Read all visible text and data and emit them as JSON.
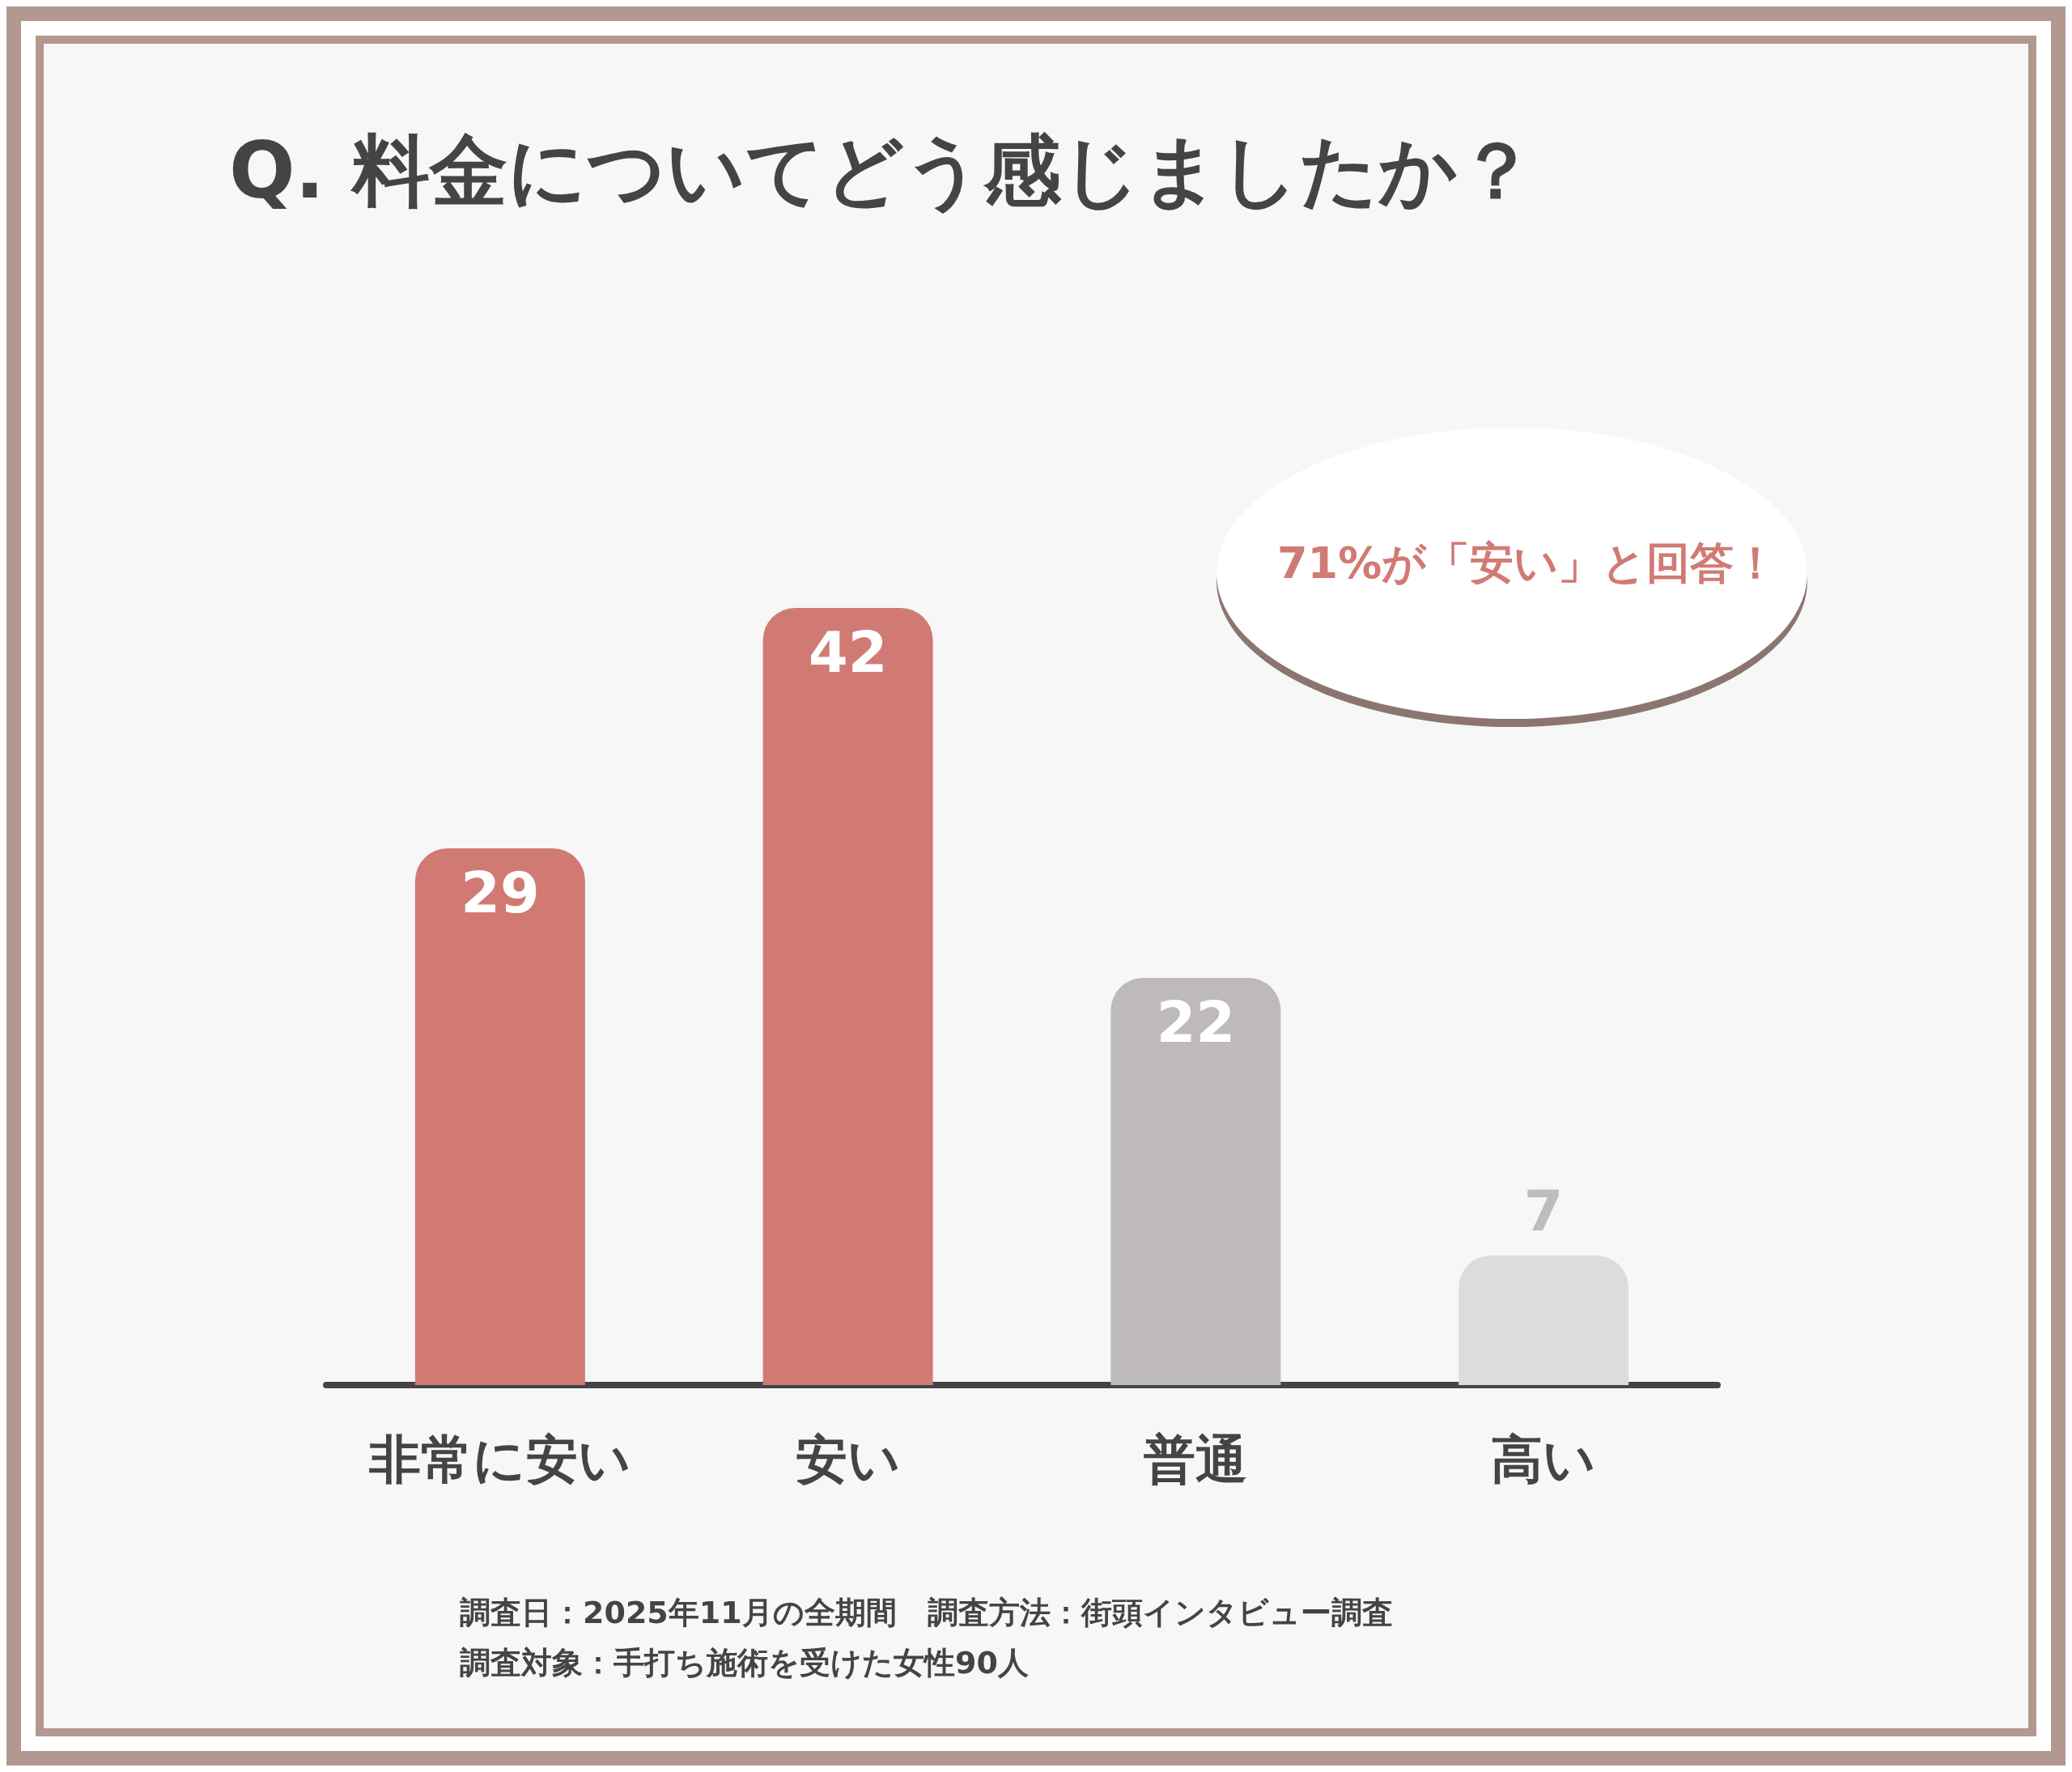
{
  "chart_data": {
    "type": "bar",
    "title": "Q. 料金についてどう感じましたか？",
    "categories": [
      "非常に安い",
      "安い",
      "普通",
      "高い"
    ],
    "values": [
      29,
      42,
      22,
      7
    ],
    "colors": [
      "#d17a74",
      "#d17a74",
      "#bfbaba",
      "#dcdcdc"
    ],
    "data_labels": true,
    "annotations": [
      "71%が「安い」と回答！",
      "調査日：2025年11月の全期間　調査方法：街頭インタビュー調査",
      "調査対象：手打ち施術を受けた女性90人"
    ]
  }
}
